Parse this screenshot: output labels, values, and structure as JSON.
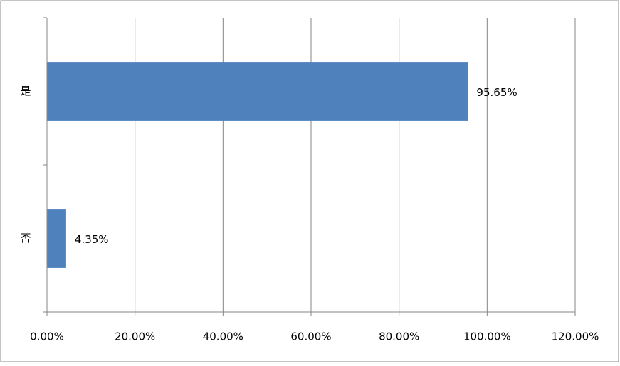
{
  "chart_data": {
    "type": "bar",
    "orientation": "horizontal",
    "categories": [
      "是",
      "否"
    ],
    "values": [
      95.65,
      4.35
    ],
    "value_labels": [
      "95.65%",
      "4.35%"
    ],
    "color": "#4f81bd",
    "xlim": [
      0,
      120
    ],
    "xticks": [
      {
        "value": 0,
        "label": "0.00%"
      },
      {
        "value": 20,
        "label": "20.00%"
      },
      {
        "value": 40,
        "label": "40.00%"
      },
      {
        "value": 60,
        "label": "60.00%"
      },
      {
        "value": 80,
        "label": "80.00%"
      },
      {
        "value": 100,
        "label": "100.00%"
      },
      {
        "value": 120,
        "label": "120.00%"
      }
    ],
    "grid": true
  }
}
